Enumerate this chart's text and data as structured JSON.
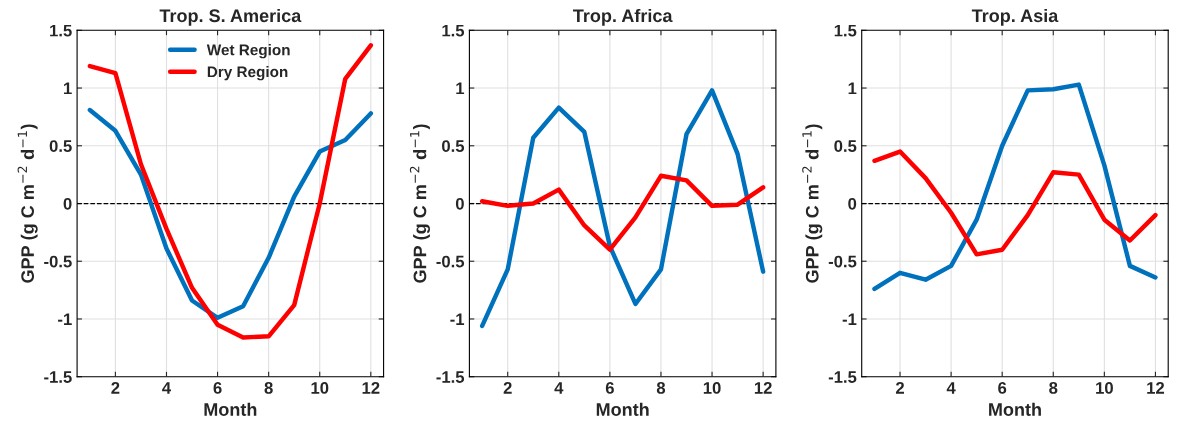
{
  "chart_data": [
    {
      "type": "line",
      "title": "Trop. S. America",
      "xlabel": "Month",
      "ylabel": "GPP (g C m$^{−2}$ d$^{−1}$)",
      "x": [
        1,
        2,
        3,
        4,
        5,
        6,
        7,
        8,
        9,
        10,
        11,
        12
      ],
      "series": [
        {
          "name": "Wet Region",
          "color": "#0072bd",
          "values": [
            0.81,
            0.63,
            0.25,
            -0.39,
            -0.84,
            -0.99,
            -0.89,
            -0.47,
            0.06,
            0.45,
            0.55,
            0.78
          ]
        },
        {
          "name": "Dry Region",
          "color": "#ff0000",
          "values": [
            1.19,
            1.13,
            0.34,
            -0.22,
            -0.73,
            -1.05,
            -1.16,
            -1.15,
            -0.88,
            0.0,
            1.08,
            1.37
          ]
        }
      ],
      "xlim": [
        0.5,
        12.5
      ],
      "xticks": [
        2,
        4,
        6,
        8,
        10,
        12
      ],
      "ylim": [
        -1.5,
        1.5
      ],
      "yticks": [
        -1.5,
        -1,
        -0.5,
        0,
        0.5,
        1,
        1.5
      ],
      "ref_lines": [
        {
          "axis": "y",
          "value": 0,
          "color": "#000000",
          "line_style": "dashed"
        }
      ],
      "grid": true,
      "legend": "top"
    },
    {
      "type": "line",
      "title": "Trop. Africa",
      "xlabel": "Month",
      "ylabel": "GPP (g C m$^{−2}$ d$^{−1}$)",
      "x": [
        1,
        2,
        3,
        4,
        5,
        6,
        7,
        8,
        9,
        10,
        11,
        12
      ],
      "series": [
        {
          "color": "#0072bd",
          "values": [
            -1.06,
            -0.57,
            0.57,
            0.83,
            0.62,
            -0.37,
            -0.87,
            -0.57,
            0.6,
            0.98,
            0.43,
            -0.59
          ]
        },
        {
          "color": "#ff0000",
          "values": [
            0.02,
            -0.02,
            0.0,
            0.12,
            -0.19,
            -0.4,
            -0.12,
            0.24,
            0.2,
            -0.02,
            -0.01,
            0.14
          ]
        }
      ],
      "xlim": [
        0.5,
        12.5
      ],
      "xticks": [
        2,
        4,
        6,
        8,
        10,
        12
      ],
      "ylim": [
        -1.5,
        1.5
      ],
      "yticks": [
        -1.5,
        -1,
        -0.5,
        0,
        0.5,
        1,
        1.5
      ],
      "ref_lines": [
        {
          "axis": "y",
          "value": 0,
          "color": "#000000",
          "line_style": "dashed"
        }
      ],
      "grid": true
    },
    {
      "type": "line",
      "title": "Trop. Asia",
      "xlabel": "Month",
      "ylabel": "GPP (g C m$^{−2}$ d$^{−1}$)",
      "x": [
        1,
        2,
        3,
        4,
        5,
        6,
        7,
        8,
        9,
        10,
        11,
        12
      ],
      "series": [
        {
          "color": "#0072bd",
          "values": [
            -0.74,
            -0.6,
            -0.66,
            -0.54,
            -0.14,
            0.5,
            0.98,
            0.99,
            1.03,
            0.33,
            -0.54,
            -0.64
          ]
        },
        {
          "color": "#ff0000",
          "values": [
            0.37,
            0.45,
            0.22,
            -0.08,
            -0.44,
            -0.4,
            -0.1,
            0.27,
            0.25,
            -0.14,
            -0.32,
            -0.1
          ]
        }
      ],
      "xlim": [
        0.5,
        12.5
      ],
      "xticks": [
        2,
        4,
        6,
        8,
        10,
        12
      ],
      "ylim": [
        -1.5,
        1.5
      ],
      "yticks": [
        -1.5,
        -1,
        -0.5,
        0,
        0.5,
        1,
        1.5
      ],
      "ref_lines": [
        {
          "axis": "y",
          "value": 0,
          "color": "#000000",
          "line_style": "dashed"
        }
      ],
      "grid": true
    }
  ]
}
